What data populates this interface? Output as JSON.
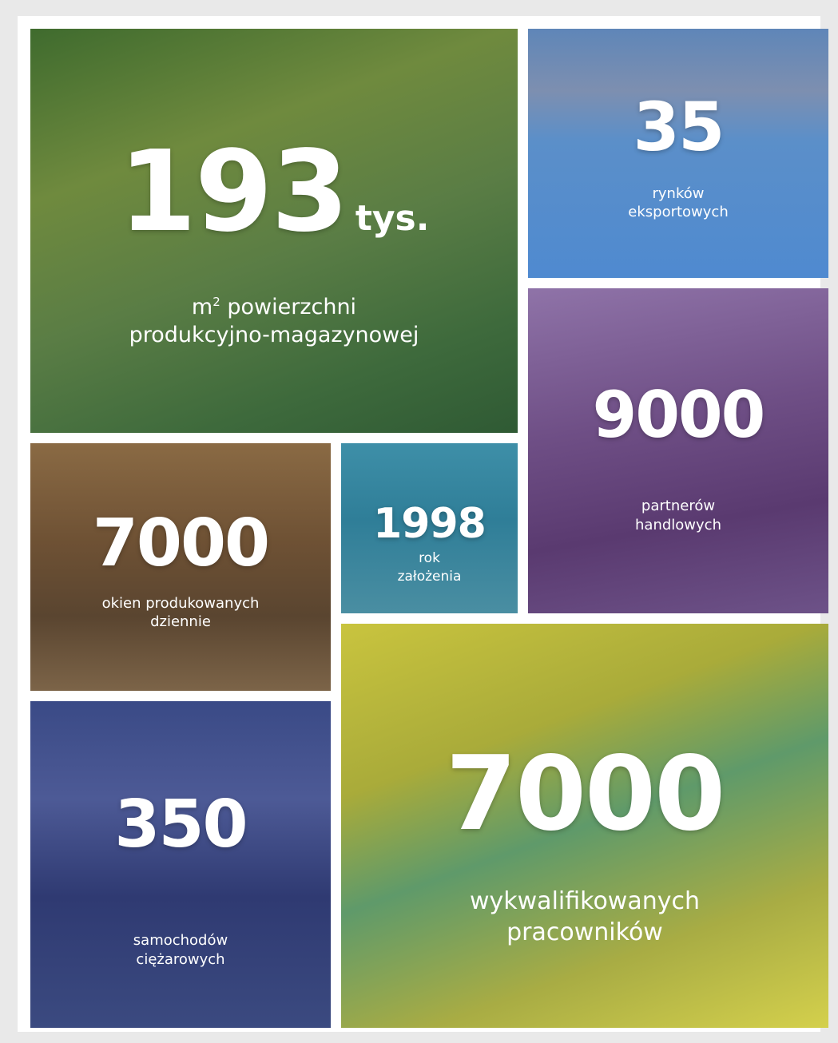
{
  "tiles": [
    {
      "number": "193",
      "suffix": "tys.",
      "unit": "m",
      "unit_sup": "2",
      "label_lines": [
        "powierzchni",
        "produkcyjno-magazynowej"
      ]
    },
    {
      "number": "35",
      "label_lines": [
        "rynków",
        "eksportowych"
      ]
    },
    {
      "number": "9000",
      "label_lines": [
        "partnerów",
        "handlowych"
      ]
    },
    {
      "number": "7000",
      "label_lines": [
        "okien produkowanych",
        "dziennie"
      ]
    },
    {
      "number": "1998",
      "label_lines": [
        "rok",
        "założenia"
      ]
    },
    {
      "number": "7000",
      "label_lines": [
        "wykwalifikowanych",
        "pracowników"
      ]
    },
    {
      "number": "350",
      "label_lines": [
        "samochodów",
        "ciężarowych"
      ]
    }
  ]
}
